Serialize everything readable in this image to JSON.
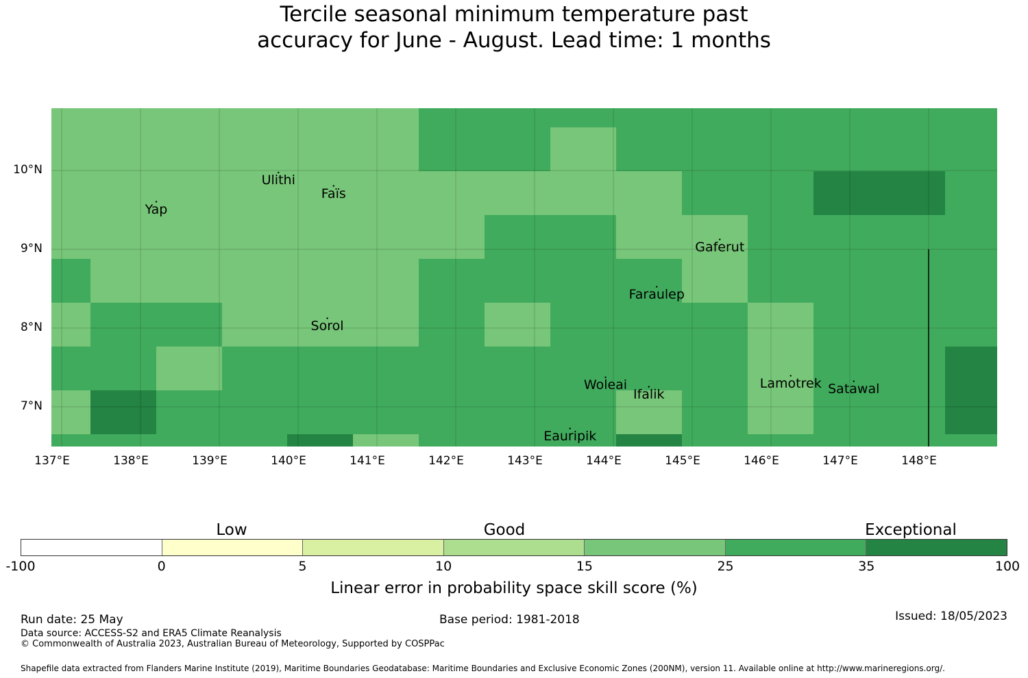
{
  "title": {
    "line1": "Tercile seasonal minimum temperature past",
    "line2": "accuracy for June - August. Lead time: 1 months"
  },
  "map": {
    "lon_range": [
      137,
      149
    ],
    "lat_range": [
      6.5,
      10.8
    ],
    "lat_ticks": [
      {
        "value": 10,
        "label": "10°N"
      },
      {
        "value": 9,
        "label": "9°N"
      },
      {
        "value": 8,
        "label": "8°N"
      },
      {
        "value": 7,
        "label": "7°N"
      }
    ],
    "lon_ticks": [
      {
        "value": 137,
        "label": "137°E"
      },
      {
        "value": 138,
        "label": "138°E"
      },
      {
        "value": 139,
        "label": "139°E"
      },
      {
        "value": 140,
        "label": "140°E"
      },
      {
        "value": 141,
        "label": "141°E"
      },
      {
        "value": 142,
        "label": "142°E"
      },
      {
        "value": 143,
        "label": "143°E"
      },
      {
        "value": 144,
        "label": "144°E"
      },
      {
        "value": 145,
        "label": "145°E"
      },
      {
        "value": 146,
        "label": "146°E"
      },
      {
        "value": 147,
        "label": "147°E"
      },
      {
        "value": 148,
        "label": "148°E"
      }
    ],
    "skill_category_colors": {
      "15-25": "#78c679",
      "25-35": "#41ab5d",
      "35-100": "#238443"
    },
    "places": [
      {
        "name": "Ulithi",
        "lon": 139.75,
        "lat": 9.87
      },
      {
        "name": "Faïs",
        "lon": 140.45,
        "lat": 9.7
      },
      {
        "name": "Yap",
        "lon": 138.2,
        "lat": 9.5
      },
      {
        "name": "Gaferut",
        "lon": 145.35,
        "lat": 9.02
      },
      {
        "name": "Faraulep",
        "lon": 144.55,
        "lat": 8.42
      },
      {
        "name": "Sorol",
        "lon": 140.37,
        "lat": 8.02
      },
      {
        "name": "Woleai",
        "lon": 143.9,
        "lat": 7.27
      },
      {
        "name": "Ifalik",
        "lon": 144.45,
        "lat": 7.15
      },
      {
        "name": "Lamotrek",
        "lon": 146.25,
        "lat": 7.29
      },
      {
        "name": "Satawal",
        "lon": 147.05,
        "lat": 7.22
      },
      {
        "name": "Eauripik",
        "lon": 143.45,
        "lat": 6.62
      }
    ],
    "boundary_line": {
      "lon": 148.0,
      "lat_from": 6.5,
      "lat_to": 9.0
    }
  },
  "colorbar": {
    "headers": [
      "Low",
      "Good",
      "Exceptional"
    ],
    "bins": [
      {
        "from": "-100",
        "to": "0",
        "color": "#ffffff"
      },
      {
        "from": "0",
        "to": "5",
        "color": "#ffffcc"
      },
      {
        "from": "5",
        "to": "10",
        "color": "#d9f0a3"
      },
      {
        "from": "10",
        "to": "15",
        "color": "#addd8e"
      },
      {
        "from": "15",
        "to": "25",
        "color": "#78c679"
      },
      {
        "from": "25",
        "to": "35",
        "color": "#41ab5d"
      },
      {
        "from": "35",
        "to": "100",
        "color": "#238443"
      }
    ],
    "tick_labels": [
      "-100",
      "0",
      "5",
      "10",
      "15",
      "25",
      "35",
      "100"
    ],
    "label": "Linear error in probability space skill score (%)"
  },
  "footer": {
    "run_date": "Run date: 25 May",
    "base_period": "Base period: 1981-2018",
    "issued": "Issued: 18/05/2023",
    "data_source": "Data source: ACCESS-S2 and ERA5 Climate Reanalysis",
    "copyright": "© Commonwealth of Australia 2023, Australian Bureau of Meteorology, Supported by COSPPac",
    "shapefile": "Shapefile data extracted from Flanders Marine Institute (2019), Maritime Boundaries Geodatabase: Maritime Boundaries and Exclusive Economic Zones (200NM), version 11. Available online at http://www.marineregions.org/."
  }
}
